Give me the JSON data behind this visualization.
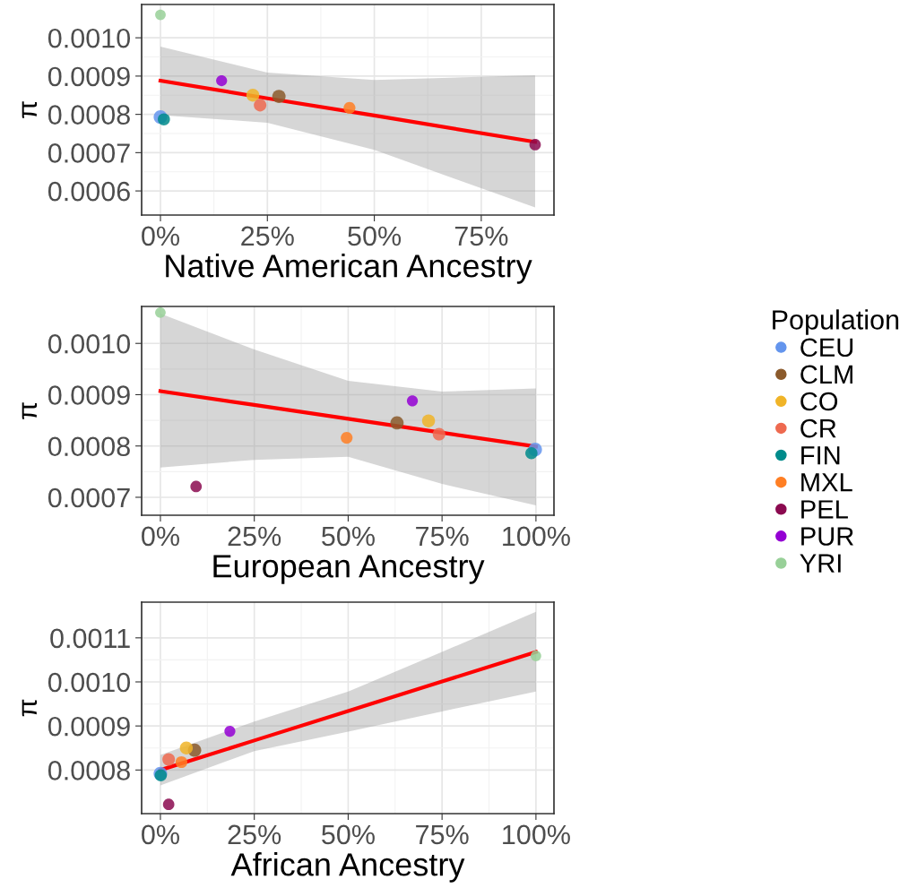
{
  "chart_data": [
    {
      "type": "scatter",
      "xlabel": "Native American Ancestry",
      "ylabel": "π",
      "legend": "right",
      "legend_title": "Population",
      "grid": true,
      "marker": "circle",
      "xlim": [
        -4.4,
        92
      ],
      "xticks": [
        {
          "value": 0,
          "label": "0%"
        },
        {
          "value": 25,
          "label": "25%"
        },
        {
          "value": 50,
          "label": "50%"
        },
        {
          "value": 75,
          "label": "75%"
        }
      ],
      "ylim": [
        0.000537,
        0.001087
      ],
      "yticks": [
        {
          "value": 0.0006,
          "label": "0.0006"
        },
        {
          "value": 0.0007,
          "label": "0.0007"
        },
        {
          "value": 0.0008,
          "label": "0.0008"
        },
        {
          "value": 0.0009,
          "label": "0.0009"
        },
        {
          "value": 0.001,
          "label": "0.0010"
        }
      ],
      "series": [
        {
          "name": "CEU",
          "color": "#6495ed",
          "x": [
            0
          ],
          "values": [
            0.000793
          ]
        },
        {
          "name": "CLM",
          "color": "#8b5a2b",
          "x": [
            27.7
          ],
          "values": [
            0.000847
          ]
        },
        {
          "name": "CO",
          "color": "#f0b428",
          "x": [
            21.6
          ],
          "values": [
            0.00085
          ]
        },
        {
          "name": "CR",
          "color": "#ee6a50",
          "x": [
            23.3
          ],
          "values": [
            0.000824
          ]
        },
        {
          "name": "FIN",
          "color": "#008b8b",
          "x": [
            0.8
          ],
          "values": [
            0.000787
          ]
        },
        {
          "name": "MXL",
          "color": "#ff7f24",
          "x": [
            44.2
          ],
          "values": [
            0.000817
          ]
        },
        {
          "name": "PEL",
          "color": "#8b0a50",
          "x": [
            87.6
          ],
          "values": [
            0.000721
          ]
        },
        {
          "name": "PUR",
          "color": "#9400d3",
          "x": [
            14.3
          ],
          "values": [
            0.000888
          ]
        },
        {
          "name": "YRI",
          "color": "#98d098",
          "x": [
            0
          ],
          "values": [
            0.00106
          ]
        },
        {
          "type": "line",
          "marker": "none",
          "color": "#ff0000",
          "x": [
            0,
            25,
            50,
            87.6
          ],
          "values": [
            0.000888,
            0.000842,
            0.000797,
            0.000728
          ],
          "lower": [
            0.000798,
            0.000778,
            0.000707,
            0.000557
          ],
          "upper": [
            0.000977,
            0.000909,
            0.00089,
            0.000902
          ]
        }
      ]
    },
    {
      "type": "scatter",
      "xlabel": "European Ancestry",
      "ylabel": "π",
      "grid": true,
      "marker": "circle",
      "xlim": [
        -5,
        104.8
      ],
      "xticks": [
        {
          "value": 0,
          "label": "0%"
        },
        {
          "value": 25,
          "label": "25%"
        },
        {
          "value": 50,
          "label": "50%"
        },
        {
          "value": 75,
          "label": "75%"
        },
        {
          "value": 100,
          "label": "100%"
        }
      ],
      "ylim": [
        0.000665,
        0.001072
      ],
      "yticks": [
        {
          "value": 0.0007,
          "label": "0.0007"
        },
        {
          "value": 0.0008,
          "label": "0.0008"
        },
        {
          "value": 0.0009,
          "label": "0.0009"
        },
        {
          "value": 0.001,
          "label": "0.0010"
        }
      ],
      "series": [
        {
          "color": "#6495ed",
          "x": [
            99.8
          ],
          "values": [
            0.000793
          ]
        },
        {
          "color": "#8b5a2b",
          "x": [
            63.0
          ],
          "values": [
            0.000845
          ]
        },
        {
          "color": "#f0b428",
          "x": [
            71.4
          ],
          "values": [
            0.000849
          ]
        },
        {
          "color": "#ee6a50",
          "x": [
            74.2
          ],
          "values": [
            0.000823
          ]
        },
        {
          "color": "#008b8b",
          "x": [
            98.8
          ],
          "values": [
            0.000786
          ]
        },
        {
          "color": "#ff7f24",
          "x": [
            49.6
          ],
          "values": [
            0.000816
          ]
        },
        {
          "color": "#8b0a50",
          "x": [
            9.5
          ],
          "values": [
            0.000721
          ]
        },
        {
          "color": "#9400d3",
          "x": [
            67.1
          ],
          "values": [
            0.000888
          ]
        },
        {
          "color": "#98d098",
          "x": [
            0
          ],
          "values": [
            0.00106
          ]
        },
        {
          "type": "line",
          "marker": "none",
          "color": "#ff0000",
          "x": [
            0,
            25,
            50,
            75,
            100
          ],
          "values": [
            0.000907,
            0.00088,
            0.000853,
            0.000826,
            0.000799
          ],
          "lower": [
            0.000758,
            0.000773,
            0.000779,
            0.000726,
            0.000684
          ],
          "upper": [
            0.001058,
            0.000988,
            0.000927,
            0.000906,
            0.000912
          ]
        }
      ]
    },
    {
      "type": "scatter",
      "xlabel": "African Ancestry",
      "ylabel": "π",
      "grid": true,
      "marker": "circle",
      "xlim": [
        -5,
        104.8
      ],
      "xticks": [
        {
          "value": 0,
          "label": "0%"
        },
        {
          "value": 25,
          "label": "25%"
        },
        {
          "value": 50,
          "label": "50%"
        },
        {
          "value": 75,
          "label": "75%"
        },
        {
          "value": 100,
          "label": "100%"
        }
      ],
      "ylim": [
        0.000701,
        0.001181
      ],
      "yticks": [
        {
          "value": 0.0008,
          "label": "0.0008"
        },
        {
          "value": 0.0009,
          "label": "0.0009"
        },
        {
          "value": 0.001,
          "label": "0.0010"
        },
        {
          "value": 0.0011,
          "label": "0.0011"
        }
      ],
      "series": [
        {
          "color": "#6495ed",
          "x": [
            0
          ],
          "values": [
            0.000792
          ]
        },
        {
          "color": "#8b5a2b",
          "x": [
            9.1
          ],
          "values": [
            0.000845
          ]
        },
        {
          "color": "#f0b428",
          "x": [
            6.9
          ],
          "values": [
            0.00085
          ]
        },
        {
          "color": "#ee6a50",
          "x": [
            2.2
          ],
          "values": [
            0.000824
          ]
        },
        {
          "color": "#008b8b",
          "x": [
            0.1
          ],
          "values": [
            0.000788
          ]
        },
        {
          "color": "#ff7f24",
          "x": [
            5.6
          ],
          "values": [
            0.000818
          ]
        },
        {
          "color": "#8b0a50",
          "x": [
            2.2
          ],
          "values": [
            0.000722
          ]
        },
        {
          "color": "#9400d3",
          "x": [
            18.5
          ],
          "values": [
            0.000888
          ]
        },
        {
          "color": "#98d098",
          "x": [
            100
          ],
          "values": [
            0.001059
          ]
        },
        {
          "type": "line",
          "marker": "none",
          "color": "#ff0000",
          "x": [
            0,
            25,
            50,
            75,
            100
          ],
          "values": [
            0.0008,
            0.000867,
            0.000934,
            0.001001,
            0.001068
          ],
          "lower": [
            0.000765,
            0.000843,
            0.000887,
            0.000933,
            0.000978
          ],
          "upper": [
            0.000834,
            0.00091,
            0.000978,
            0.001068,
            0.001159
          ]
        }
      ]
    }
  ]
}
